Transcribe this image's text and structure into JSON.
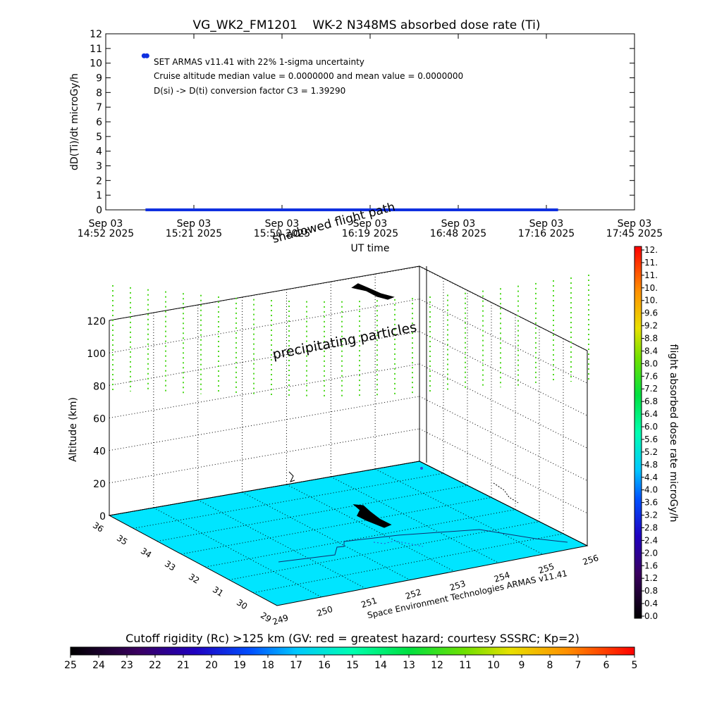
{
  "chart_data": [
    {
      "type": "scatter",
      "title": "VG_WK2_FM1201    WK-2 N348MS absorbed dose rate (Ti)",
      "ylabel": "dD(Ti)/dt microGy/h",
      "xlabel": "UT time",
      "ylim": [
        0,
        12
      ],
      "yticks": [
        "0",
        "1",
        "2",
        "3",
        "4",
        "5",
        "6",
        "7",
        "8",
        "9",
        "10",
        "11",
        "12"
      ],
      "xticks": [
        {
          "top": "Sep 03",
          "bottom": "14:52 2025"
        },
        {
          "top": "Sep 03",
          "bottom": "15:21 2025"
        },
        {
          "top": "Sep 03",
          "bottom": "15:50 2025"
        },
        {
          "top": "Sep 03",
          "bottom": "16:19 2025"
        },
        {
          "top": "Sep 03",
          "bottom": "16:48 2025"
        },
        {
          "top": "Sep 03",
          "bottom": "17:16 2025"
        },
        {
          "top": "Sep 03",
          "bottom": "17:45 2025"
        }
      ],
      "annotations": [
        "SET ARMAS v11.41 with 22% 1-sigma uncertainty",
        "Cruise altitude median value = 0.0000000 and mean value = 0.0000000",
        "D(si) -> D(ti) conversion factor C3 = 1.39290"
      ],
      "series": [
        {
          "color": "#1030e0",
          "x_range": [
            "15:05",
            "17:20"
          ],
          "values_constant": 0.0
        },
        {
          "color": "#1030e0",
          "points": [
            {
              "x": "15:05",
              "y": 10.5
            }
          ]
        }
      ]
    },
    {
      "type": "scatter3d",
      "zlabel": "Altitude (km)",
      "zticks": [
        "0",
        "20",
        "40",
        "60",
        "80",
        "100",
        "120"
      ],
      "lat_ticks": [
        "29",
        "30",
        "31",
        "32",
        "33",
        "34",
        "35",
        "36"
      ],
      "lon_ticks": [
        "249",
        "250",
        "251",
        "252",
        "253",
        "254",
        "255",
        "256"
      ],
      "labels": {
        "precipitating": "precipitating particles",
        "shadowed": "shadowed flight path",
        "credit": "Space Environment Technologies ARMAS v11.41"
      },
      "floor_color": "#00e5ff",
      "particle_color": "#4fd820",
      "path_color": "#000000"
    },
    {
      "type": "colorbar",
      "label": "flight absorbed dose rate microGy/h",
      "ticks": [
        "0.0",
        "0.4",
        "0.8",
        "1.2",
        "1.6",
        "2.0",
        "2.4",
        "2.8",
        "3.2",
        "3.6",
        "4.0",
        "4.4",
        "4.8",
        "5.2",
        "5.6",
        "6.0",
        "6.4",
        "6.8",
        "7.2",
        "7.6",
        "8.0",
        "8.4",
        "8.8",
        "9.2",
        "9.6",
        "10.",
        "10.",
        "11.",
        "11.",
        "12."
      ]
    },
    {
      "type": "colorbar",
      "label": "Cutoff rigidity (Rc) >125 km (GV: red = greatest hazard; courtesy SSSRC; Kp=2)",
      "ticks": [
        "25",
        "24",
        "23",
        "22",
        "21",
        "20",
        "19",
        "18",
        "17",
        "16",
        "15",
        "14",
        "13",
        "12",
        "11",
        "10",
        "9",
        "8",
        "7",
        "6",
        "5"
      ]
    }
  ]
}
